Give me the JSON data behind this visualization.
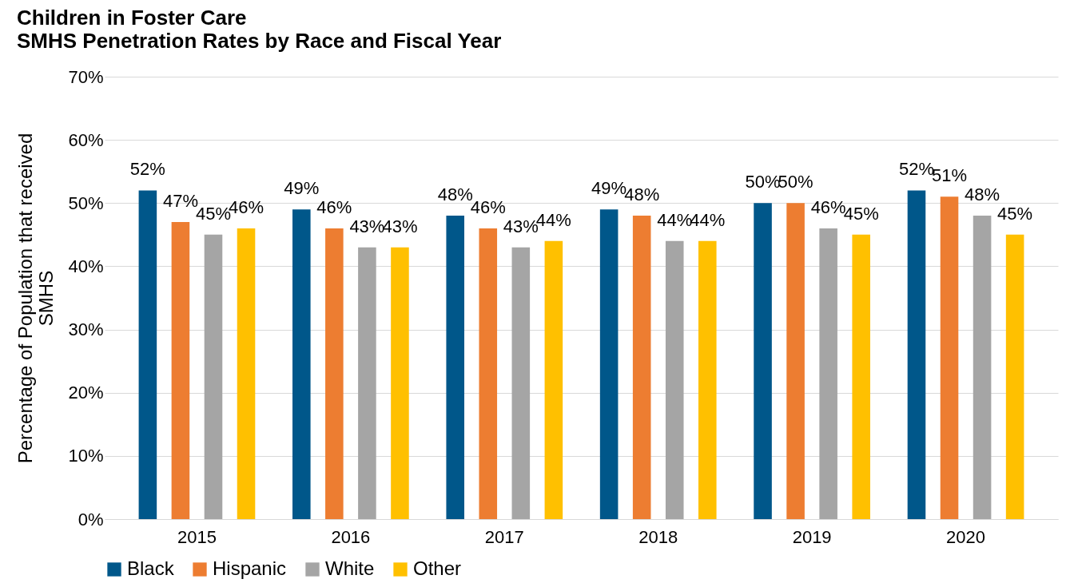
{
  "chart_data": {
    "type": "bar",
    "title": "Children in Foster Care",
    "subtitle": "SMHS Penetration Rates by Race and Fiscal Year",
    "ylabel": "Percentage of Population that received SMHS",
    "categories": [
      "2015",
      "2016",
      "2017",
      "2018",
      "2019",
      "2020"
    ],
    "series": [
      {
        "name": "Black",
        "color": "#00578a",
        "values": [
          52,
          49,
          48,
          49,
          50,
          52
        ],
        "value_labels": [
          "52%",
          "49%",
          "48%",
          "49%",
          "50%",
          "52%"
        ]
      },
      {
        "name": "Hispanic",
        "color": "#ed7d31",
        "values": [
          47,
          46,
          46,
          48,
          50,
          51
        ],
        "value_labels": [
          "47%",
          "46%",
          "46%",
          "48%",
          "50%",
          "51%"
        ]
      },
      {
        "name": "White",
        "color": "#a5a5a5",
        "values": [
          45,
          43,
          43,
          44,
          46,
          48
        ],
        "value_labels": [
          "45%",
          "43%",
          "43%",
          "44%",
          "46%",
          "48%"
        ]
      },
      {
        "name": "Other",
        "color": "#ffc000",
        "values": [
          46,
          43,
          44,
          44,
          45,
          45
        ],
        "value_labels": [
          "46%",
          "43%",
          "44%",
          "44%",
          "45%",
          "45%"
        ]
      }
    ],
    "ylim": [
      0,
      70
    ],
    "yticks": [
      {
        "value": 0,
        "label": "0%"
      },
      {
        "value": 10,
        "label": "10%"
      },
      {
        "value": 20,
        "label": "20%"
      },
      {
        "value": 30,
        "label": "30%"
      },
      {
        "value": 40,
        "label": "40%"
      },
      {
        "value": 50,
        "label": "50%"
      },
      {
        "value": 60,
        "label": "60%"
      },
      {
        "value": 70,
        "label": "70%"
      }
    ],
    "grid": "y",
    "legend": "bottom"
  }
}
